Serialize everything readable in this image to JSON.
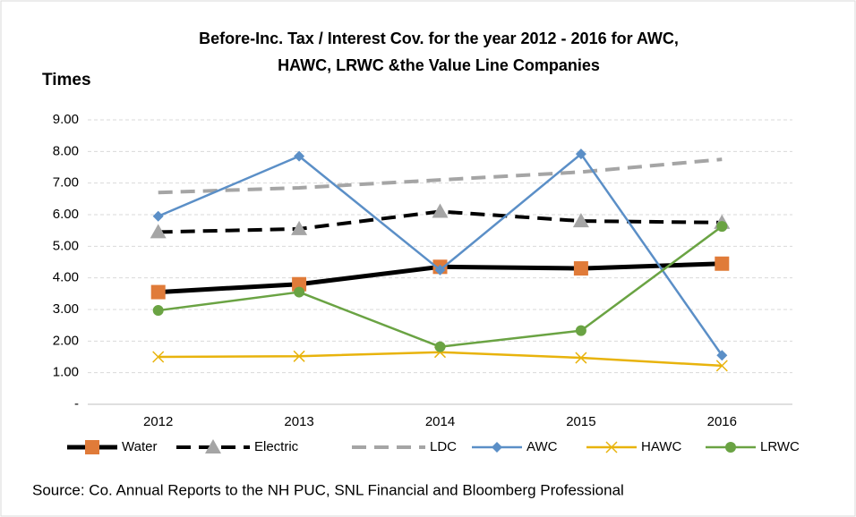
{
  "chart_data": {
    "type": "line",
    "title": [
      "Before-Inc. Tax / Interest Cov. for the year 2012 - 2016 for AWC,",
      "HAWC, LRWC &the Value Line Companies"
    ],
    "y_label": "Times",
    "source": "Source: Co. Annual Reports to the NH PUC, SNL Financial and Bloomberg Professional",
    "categories": [
      "2012",
      "2013",
      "2014",
      "2015",
      "2016"
    ],
    "ylim": [
      0,
      9
    ],
    "yticks": [
      {
        "value": 0,
        "label": "-"
      },
      {
        "value": 1,
        "label": "1.00"
      },
      {
        "value": 2,
        "label": "2.00"
      },
      {
        "value": 3,
        "label": "3.00"
      },
      {
        "value": 4,
        "label": "4.00"
      },
      {
        "value": 5,
        "label": "5.00"
      },
      {
        "value": 6,
        "label": "6.00"
      },
      {
        "value": 7,
        "label": "7.00"
      },
      {
        "value": 8,
        "label": "8.00"
      },
      {
        "value": 9,
        "label": "9.00"
      }
    ],
    "grid": true,
    "legend": "bottom",
    "series": [
      {
        "name": "Water",
        "color": "#000000",
        "width": 5,
        "dash": false,
        "marker": "square",
        "marker_color": "#e07b39",
        "values": [
          3.55,
          3.8,
          4.35,
          4.3,
          4.45
        ]
      },
      {
        "name": "Electric",
        "color": "#000000",
        "width": 4,
        "dash": true,
        "marker": "triangle",
        "marker_color": "#a5a5a5",
        "values": [
          5.45,
          5.55,
          6.1,
          5.8,
          5.75
        ]
      },
      {
        "name": "LDC",
        "color": "#a5a5a5",
        "width": 4,
        "dash": true,
        "marker": "none",
        "marker_color": "#a5a5a5",
        "values": [
          6.7,
          6.85,
          7.1,
          7.35,
          7.75
        ]
      },
      {
        "name": "AWC",
        "color": "#5b8fc7",
        "width": 2.5,
        "dash": false,
        "marker": "diamond",
        "marker_color": "#5b8fc7",
        "values": [
          5.95,
          7.85,
          4.25,
          7.92,
          1.55
        ]
      },
      {
        "name": "HAWC",
        "color": "#e8b30c",
        "width": 2.5,
        "dash": false,
        "marker": "x",
        "marker_color": "#e8b30c",
        "values": [
          1.5,
          1.52,
          1.65,
          1.47,
          1.22
        ]
      },
      {
        "name": "LRWC",
        "color": "#6aa343",
        "width": 2.5,
        "dash": false,
        "marker": "circle",
        "marker_color": "#6aa343",
        "values": [
          2.97,
          3.55,
          1.82,
          2.33,
          5.63
        ]
      }
    ]
  }
}
